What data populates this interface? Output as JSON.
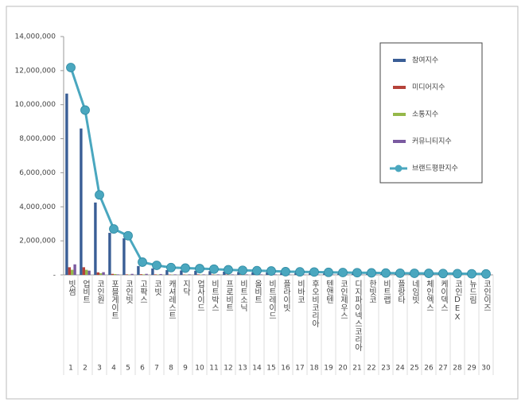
{
  "chart_data": {
    "type": "bar_line",
    "categories": [
      "빗썸",
      "업비트",
      "코인원",
      "포블게이트",
      "코인빗",
      "고팍스",
      "코빗",
      "캐셔레스트",
      "지닥",
      "업사이드",
      "비트박스",
      "프로비트",
      "비트소닉",
      "올비트",
      "비트레이드",
      "플라이빗",
      "비바코",
      "후오비코리아",
      "텐앤텐",
      "코인제우스",
      "디지파이넥스코리아",
      "한빗코",
      "비트랩",
      "플랑타",
      "네임빗",
      "체인엑스",
      "케이덱스",
      "코인DEX",
      "뉴드림",
      "코인이즈"
    ],
    "ranks": [
      1,
      2,
      3,
      4,
      5,
      6,
      7,
      8,
      9,
      10,
      11,
      12,
      13,
      14,
      15,
      16,
      17,
      18,
      19,
      20,
      21,
      22,
      23,
      24,
      25,
      26,
      27,
      28,
      29,
      30
    ],
    "series": [
      {
        "name": "참여지수",
        "color": "#3a5e96",
        "values": [
          10650000,
          8600000,
          4250000,
          2470000,
          2150000,
          520000,
          380000,
          280000,
          260000,
          240000,
          220000,
          190000,
          170000,
          160000,
          150000,
          120000,
          110000,
          100000,
          90000,
          85000,
          80000,
          75000,
          70000,
          60000,
          55000,
          50000,
          45000,
          40000,
          35000,
          30000
        ]
      },
      {
        "name": "미디어지수",
        "color": "#b5423a",
        "values": [
          450000,
          450000,
          150000,
          60000,
          30000,
          40000,
          30000,
          20000,
          20000,
          30000,
          20000,
          20000,
          20000,
          20000,
          20000,
          20000,
          15000,
          15000,
          15000,
          15000,
          15000,
          10000,
          10000,
          10000,
          10000,
          10000,
          10000,
          10000,
          10000,
          10000
        ]
      },
      {
        "name": "소통지수",
        "color": "#95b84a",
        "values": [
          300000,
          300000,
          100000,
          50000,
          20000,
          30000,
          20000,
          15000,
          15000,
          15000,
          15000,
          10000,
          10000,
          10000,
          10000,
          10000,
          10000,
          10000,
          10000,
          10000,
          10000,
          10000,
          10000,
          10000,
          10000,
          10000,
          10000,
          10000,
          10000,
          10000
        ]
      },
      {
        "name": "커뮤니티지수",
        "color": "#7a5aa0",
        "values": [
          620000,
          250000,
          160000,
          30000,
          60000,
          60000,
          50000,
          30000,
          30000,
          30000,
          30000,
          30000,
          30000,
          30000,
          30000,
          20000,
          20000,
          20000,
          20000,
          20000,
          20000,
          20000,
          15000,
          15000,
          15000,
          15000,
          15000,
          15000,
          15000,
          15000
        ]
      },
      {
        "name": "브랜드평판지수",
        "color": "#4aa7bf",
        "type": "line",
        "values": [
          12180000,
          9680000,
          4700000,
          2700000,
          2300000,
          750000,
          560000,
          430000,
          400000,
          370000,
          340000,
          300000,
          270000,
          250000,
          230000,
          190000,
          180000,
          170000,
          150000,
          140000,
          130000,
          120000,
          110000,
          100000,
          95000,
          90000,
          80000,
          75000,
          65000,
          55000
        ]
      }
    ],
    "ylim": [
      0,
      14000000
    ],
    "yticks": [
      {
        "value": 0,
        "label": "-"
      },
      {
        "value": 2000000,
        "label": "2,000,000"
      },
      {
        "value": 4000000,
        "label": "4,000,000"
      },
      {
        "value": 6000000,
        "label": "6,000,000"
      },
      {
        "value": 8000000,
        "label": "8,000,000"
      },
      {
        "value": 10000000,
        "label": "10,000,000"
      },
      {
        "value": 12000000,
        "label": "12,000,000"
      },
      {
        "value": 14000000,
        "label": "14,000,000"
      }
    ],
    "grid": false,
    "legend": "top-right"
  }
}
